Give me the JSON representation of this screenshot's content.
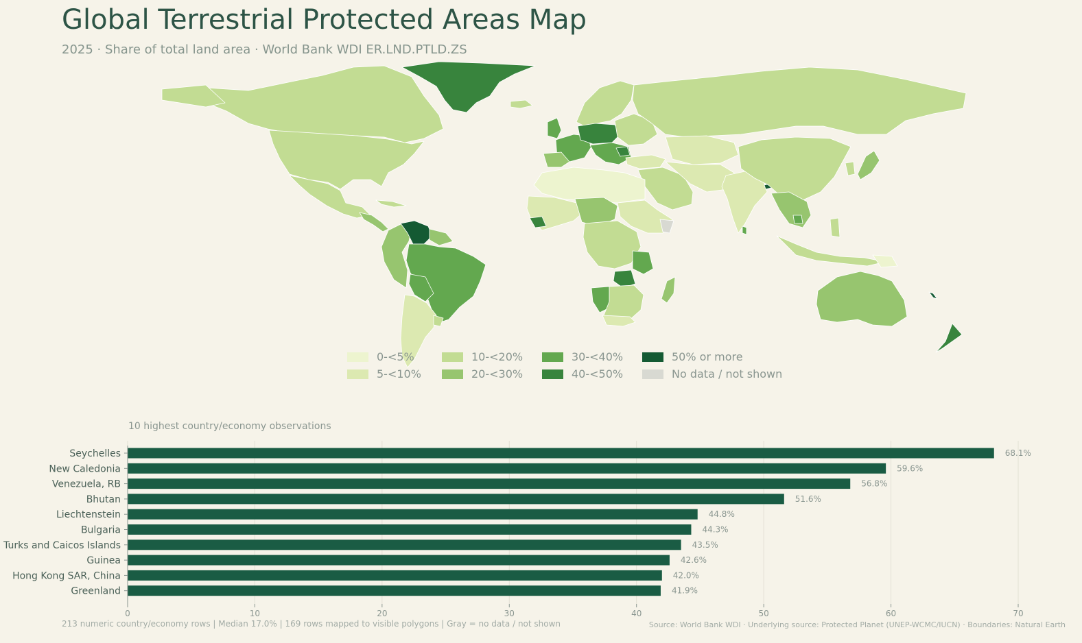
{
  "title": "Global Terrestrial Protected Areas Map",
  "subtitle": "2025 · Share of total land area · World Bank WDI ER.LND.PTLD.ZS",
  "legend": {
    "items": [
      {
        "label": "0-<5%",
        "color": "#edf4cf"
      },
      {
        "label": "5-<10%",
        "color": "#dce9b1"
      },
      {
        "label": "10-<20%",
        "color": "#c2dc93"
      },
      {
        "label": "20-<30%",
        "color": "#97c56f"
      },
      {
        "label": "30-<40%",
        "color": "#63a84f"
      },
      {
        "label": "40-<50%",
        "color": "#38843d"
      },
      {
        "label": "50% or more",
        "color": "#145a33"
      },
      {
        "label": "No data / not shown",
        "color": "#d8d9d2"
      }
    ]
  },
  "bar_caption": "10 highest country/economy observations",
  "footer": {
    "left": "213 numeric country/economy rows | Median 17.0% | 169 rows mapped to visible polygons | Gray = no data / not shown",
    "right": "Source: World Bank WDI · Underlying source: Protected Planet (UNEP-WCMC/IUCN) · Boundaries: Natural Earth"
  },
  "chart_data": [
    {
      "type": "map",
      "title": "Global Terrestrial Protected Areas Map",
      "subtitle": "2025 · Share of total land area · World Bank WDI ER.LND.PTLD.ZS",
      "legend_classes": [
        "0-<5%",
        "5-<10%",
        "10-<20%",
        "20-<30%",
        "30-<40%",
        "40-<50%",
        "50% or more",
        "No data / not shown"
      ]
    },
    {
      "type": "bar",
      "orientation": "horizontal",
      "title": "10 highest country/economy observations",
      "bar_color": "#1a5c44",
      "categories": [
        "Seychelles",
        "New Caledonia",
        "Venezuela, RB",
        "Bhutan",
        "Liechtenstein",
        "Bulgaria",
        "Turks and Caicos Islands",
        "Guinea",
        "Hong Kong SAR, China",
        "Greenland"
      ],
      "values": [
        68.1,
        59.6,
        56.8,
        51.6,
        44.8,
        44.3,
        43.5,
        42.6,
        42.0,
        41.9
      ],
      "value_labels": [
        "68.1%",
        "59.6%",
        "56.8%",
        "51.6%",
        "44.8%",
        "44.3%",
        "43.5%",
        "42.6%",
        "42.0%",
        "41.9%"
      ],
      "xlim": [
        0,
        70
      ],
      "xticks": [
        0,
        10,
        20,
        30,
        40,
        50,
        60,
        70
      ],
      "grid": true
    }
  ]
}
